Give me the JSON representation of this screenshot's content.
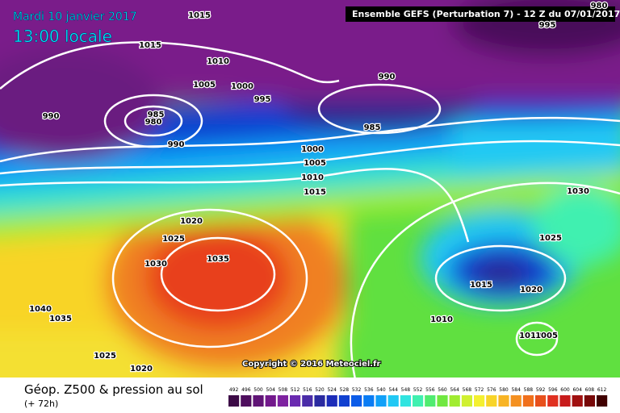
{
  "header": {
    "date": "Mardi 10 janvier 2017",
    "time": "13:00 locale",
    "model": "Ensemble GEFS  (Perturbation 7)  -  12 Z du 07/01/2017"
  },
  "copyright": "Copyright © 2016 Meteociel.fr",
  "legend": {
    "title": "Géop. Z500 & pression au sol",
    "lead": "(+ 72h)",
    "scale": [
      492,
      496,
      500,
      504,
      508,
      512,
      516,
      520,
      524,
      528,
      532,
      536,
      540,
      544,
      548,
      552,
      556,
      560,
      564,
      568,
      572,
      576,
      580,
      584,
      588,
      592,
      596,
      600,
      604,
      608,
      612
    ],
    "colors": [
      "#3c0a46",
      "#4e0e5e",
      "#601476",
      "#72188c",
      "#7e22a0",
      "#6a2ab0",
      "#4a2ca8",
      "#2a2aa0",
      "#1c2cb8",
      "#1040d0",
      "#0c5ce8",
      "#0a7cf4",
      "#10a0f8",
      "#20c8f4",
      "#30e4e0",
      "#40f0b0",
      "#50ec70",
      "#70e840",
      "#a0ec30",
      "#d0f030",
      "#f4f030",
      "#f8d428",
      "#f8b424",
      "#f49020",
      "#f0701c",
      "#e8501c",
      "#e03020",
      "#c81c1c",
      "#a01010",
      "#780808",
      "#400000"
    ]
  },
  "isobar_labels": [
    1015,
    1015,
    1010,
    1005,
    1000,
    995,
    990,
    985,
    980,
    990,
    990,
    985,
    1000,
    1005,
    1010,
    1015,
    1020,
    1025,
    1030,
    1035,
    1040,
    1035,
    1025,
    1020,
    980,
    995,
    1030,
    1025,
    1015,
    1020,
    1010,
    1010,
    1005
  ]
}
